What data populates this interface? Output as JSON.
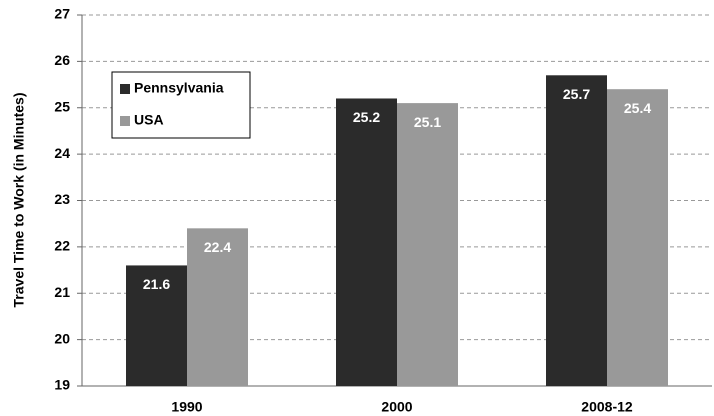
{
  "chart_data": {
    "type": "bar",
    "y_label": "Travel Time to Work (in Minutes)",
    "categories": [
      "1990",
      "2000",
      "2008-12"
    ],
    "series": [
      {
        "name": "Pennsylvania",
        "color": "#2b2b2b",
        "values": [
          21.6,
          25.2,
          25.7
        ]
      },
      {
        "name": "USA",
        "color": "#999999",
        "values": [
          22.4,
          25.1,
          25.4
        ]
      }
    ],
    "ylim": [
      19,
      27
    ],
    "yticks": [
      19,
      20,
      21,
      22,
      23,
      24,
      25,
      26,
      27
    ],
    "grid": true,
    "legend": "upper left"
  }
}
